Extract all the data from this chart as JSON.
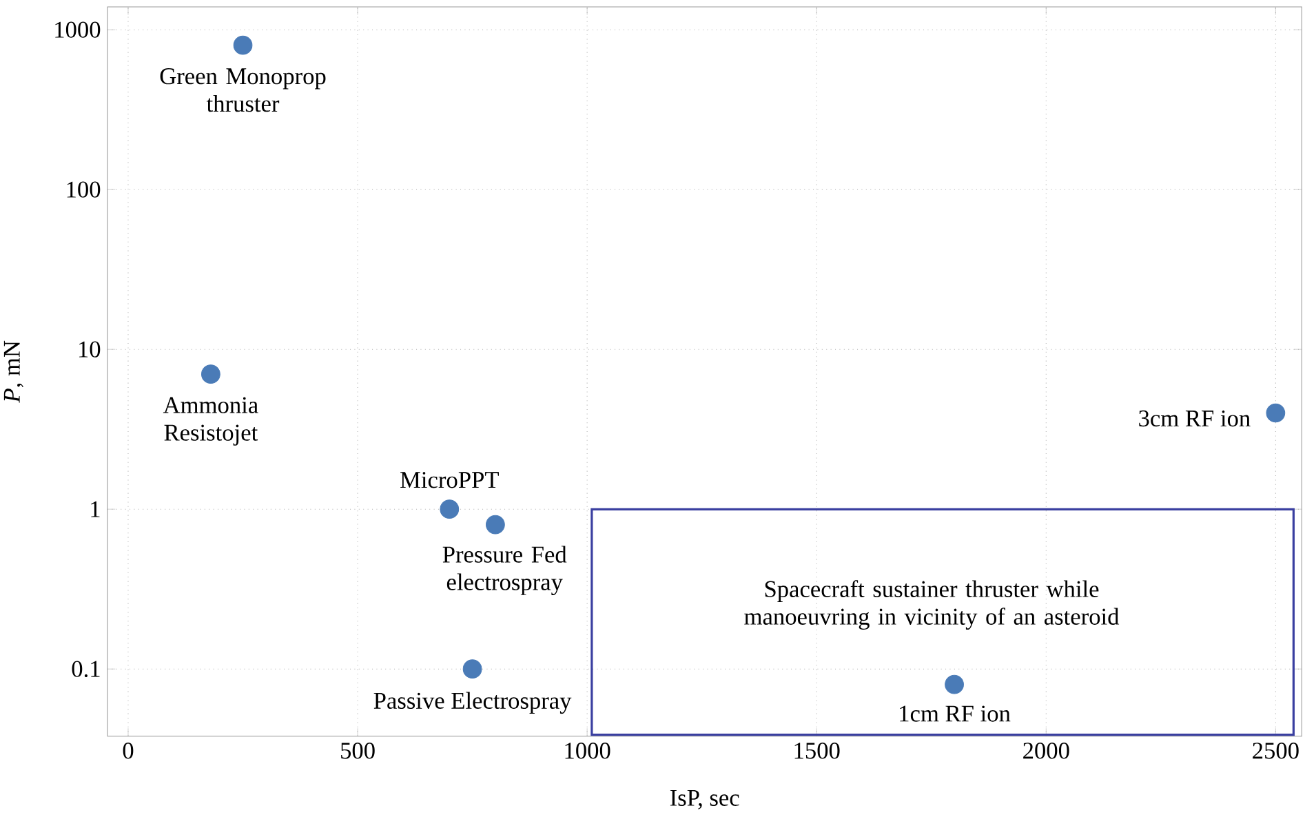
{
  "chart_data": {
    "type": "scatter",
    "xlabel": "IsP,  sec",
    "ylabel": "*P*,  mN",
    "xlim": [
      -45,
      2557
    ],
    "ylim": [
      0.038,
      1390
    ],
    "xticks": [
      0,
      500,
      1000,
      1500,
      2000,
      2500
    ],
    "yticks": [
      0.1,
      1,
      10,
      100,
      1000
    ],
    "log": "y",
    "grid": true,
    "series": [
      {
        "type": "scatter",
        "color": "#4a7bb7",
        "x": [
          250,
          180,
          700,
          800,
          750,
          2500,
          1800
        ],
        "values": [
          800,
          7,
          1,
          0.8,
          0.1,
          4,
          0.08
        ]
      }
    ],
    "annotations": [
      {
        "text": "Green Monoprop thruster",
        "x": 250,
        "y": 800
      },
      {
        "text": "Ammonia Resistojet",
        "x": 180,
        "y": 7
      },
      {
        "text": "MicroPPT",
        "x": 700,
        "y": 1
      },
      {
        "text": "Pressure Fed electrospray",
        "x": 800,
        "y": 0.8
      },
      {
        "text": "Passive Electrospray",
        "x": 750,
        "y": 0.1
      },
      {
        "text": "3cm RF ion",
        "x": 2500,
        "y": 4
      },
      {
        "text": "1cm RF ion",
        "x": 1800,
        "y": 0.08
      },
      "Spacecraft sustainer thruster while manoeuvring in vicinity of an asteroid"
    ]
  }
}
